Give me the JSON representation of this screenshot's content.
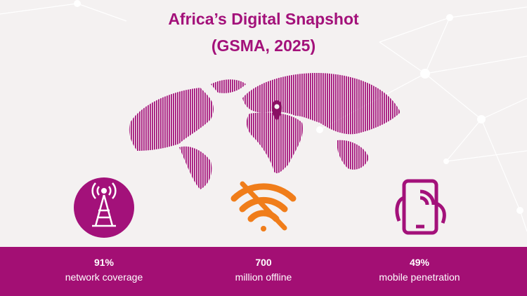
{
  "title": "Africa’s Digital Snapshot",
  "subtitle": "(GSMA, 2025)",
  "stats": [
    {
      "value": "91%",
      "label": "network coverage"
    },
    {
      "value": "700",
      "label": "million offline"
    },
    {
      "value": "49%",
      "label": "mobile penetration"
    }
  ]
}
